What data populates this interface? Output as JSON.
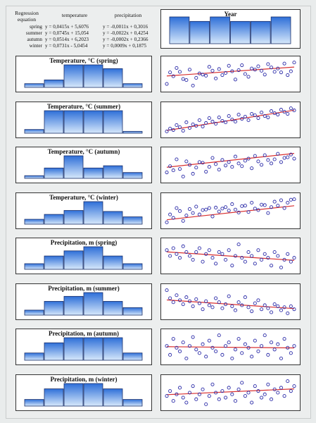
{
  "equations": {
    "header": {
      "label": "Regression equation",
      "temperature": "temperature",
      "precipitation": "precipitation"
    },
    "rows": [
      {
        "season": "spring",
        "temperature": "y = 0,0415x + 5,6076",
        "precipitation": "y = -0,0011x + 0,3016"
      },
      {
        "season": "summer",
        "temperature": "y = 0,0745x + 15,054",
        "precipitation": "y = -0,0022x + 0,4254"
      },
      {
        "season": "autumn",
        "temperature": "y = 0,0514x + 6,2023",
        "precipitation": "y = -0,0002x + 0,2366"
      },
      {
        "season": "winter",
        "temperature": "y = 0,0731x - 5,0454",
        "precipitation": "y = 0,0009x + 0,1875"
      }
    ]
  },
  "colors": {
    "bar_top": "#2e6fd8",
    "bar_bottom": "#d6e8fb",
    "bar_stroke": "#1a2f6a",
    "point": "#2a2aa8",
    "trend": "#d83030"
  },
  "chart_data": [
    {
      "type": "bar",
      "title": "Year",
      "values": [
        6,
        5,
        6,
        5,
        5,
        6
      ]
    },
    {
      "type": "bar",
      "title": "Temperature, °C (spring)",
      "values": [
        1,
        2,
        6,
        6,
        5,
        1
      ]
    },
    {
      "type": "bar",
      "title": "Temperature, °C (summer)",
      "values": [
        1,
        6,
        6,
        6,
        6,
        0.5
      ]
    },
    {
      "type": "bar",
      "title": "Temperature, °C (autumn)",
      "values": [
        0.6,
        2.3,
        5,
        2.3,
        2.8,
        1.3
      ]
    },
    {
      "type": "bar",
      "title": "Temperature, °C (winter)",
      "values": [
        1,
        2,
        2.8,
        4.6,
        2.6,
        1.5
      ]
    },
    {
      "type": "bar",
      "title": "Precipitation, m (spring)",
      "values": [
        1.1,
        2.6,
        3.6,
        4.4,
        2.6,
        1.1
      ]
    },
    {
      "type": "bar",
      "title": "Precipitation, m (summer)",
      "values": [
        0.8,
        2.2,
        3,
        3.6,
        2.2,
        1.2
      ]
    },
    {
      "type": "bar",
      "title": "Precipitation, m (autumn)",
      "values": [
        1,
        2.4,
        3.1,
        3.1,
        3.1,
        1
      ]
    },
    {
      "type": "bar",
      "title": "Precipitation, m (winter)",
      "values": [
        1,
        2.6,
        3.4,
        3.4,
        2.6,
        1
      ]
    },
    {
      "type": "scatter",
      "x": [
        1,
        2,
        3,
        4,
        5,
        6,
        7,
        8,
        9,
        10,
        11,
        12,
        13,
        14,
        15,
        16,
        17,
        18,
        19,
        20,
        21,
        22,
        23,
        24,
        25,
        26,
        27,
        28,
        29,
        30,
        31,
        32,
        33,
        34,
        35,
        36,
        37,
        38,
        39,
        40
      ],
      "y": [
        4.2,
        6.3,
        5.6,
        7.1,
        6.4,
        5.1,
        4.9,
        6.8,
        3.9,
        5.3,
        6.1,
        5.9,
        5.7,
        7.3,
        6.6,
        5.2,
        6.9,
        5.8,
        6.2,
        7.5,
        6.5,
        5.0,
        6.7,
        7.6,
        6.0,
        5.5,
        7.0,
        6.8,
        7.4,
        6.6,
        5.9,
        7.8,
        7.2,
        6.4,
        7.0,
        6.3,
        7.9,
        5.8,
        6.5,
        8.1
      ],
      "trend": [
        5.65,
        7.27
      ]
    },
    {
      "type": "scatter",
      "x": [
        1,
        2,
        3,
        4,
        5,
        6,
        7,
        8,
        9,
        10,
        11,
        12,
        13,
        14,
        15,
        16,
        17,
        18,
        19,
        20,
        21,
        22,
        23,
        24,
        25,
        26,
        27,
        28,
        29,
        30,
        31,
        32,
        33,
        34,
        35,
        36,
        37,
        38,
        39,
        40
      ],
      "y": [
        15.0,
        15.4,
        15.2,
        15.9,
        15.6,
        15.1,
        16.3,
        15.5,
        16.0,
        15.8,
        16.6,
        15.7,
        16.2,
        16.9,
        16.4,
        16.1,
        17.0,
        16.5,
        16.3,
        17.2,
        16.7,
        16.4,
        17.4,
        16.8,
        17.1,
        16.6,
        17.5,
        17.3,
        16.9,
        17.7,
        17.2,
        17.0,
        17.9,
        17.6,
        17.4,
        18.1,
        17.8,
        17.5,
        18.3,
        18.0
      ],
      "trend": [
        15.13,
        18.03
      ]
    },
    {
      "type": "scatter",
      "x": [
        1,
        2,
        3,
        4,
        5,
        6,
        7,
        8,
        9,
        10,
        11,
        12,
        13,
        14,
        15,
        16,
        17,
        18,
        19,
        20,
        21,
        22,
        23,
        24,
        25,
        26,
        27,
        28,
        29,
        30,
        31,
        32,
        33,
        34,
        35,
        36,
        37,
        38,
        39,
        40
      ],
      "y": [
        5.5,
        6.4,
        5.8,
        7.4,
        6.0,
        4.9,
        7.1,
        6.6,
        5.3,
        6.2,
        7.0,
        6.9,
        5.6,
        6.3,
        7.6,
        6.7,
        5.9,
        7.3,
        6.5,
        7.0,
        6.3,
        7.8,
        6.8,
        6.4,
        7.2,
        7.5,
        6.1,
        7.9,
        7.1,
        6.6,
        8.0,
        7.3,
        6.8,
        7.4,
        8.2,
        7.0,
        7.6,
        7.7,
        8.1,
        7.5
      ],
      "trend": [
        6.25,
        8.26
      ]
    },
    {
      "type": "scatter",
      "x": [
        1,
        2,
        3,
        4,
        5,
        6,
        7,
        8,
        9,
        10,
        11,
        12,
        13,
        14,
        15,
        16,
        17,
        18,
        19,
        20,
        21,
        22,
        23,
        24,
        25,
        26,
        27,
        28,
        29,
        30,
        31,
        32,
        33,
        34,
        35,
        36,
        37,
        38,
        39,
        40
      ],
      "y": [
        -5.5,
        -3.9,
        -4.6,
        -2.6,
        -3.2,
        -5.2,
        -4.1,
        -2.8,
        -3.6,
        -2.3,
        -3.9,
        -3.0,
        -2.9,
        -2.6,
        -4.3,
        -2.5,
        -3.3,
        -2.7,
        -2.4,
        -3.1,
        -1.8,
        -2.9,
        -3.5,
        -2.2,
        -2.1,
        -3.4,
        -1.5,
        -2.7,
        -3.0,
        -1.9,
        -2.0,
        -3.6,
        -2.4,
        -1.3,
        -2.1,
        -1.0,
        -2.6,
        -1.5,
        -0.9,
        -0.8
      ],
      "trend": [
        -4.97,
        -2.12
      ]
    },
    {
      "type": "scatter",
      "x": [
        1,
        2,
        3,
        4,
        5,
        6,
        7,
        8,
        9,
        10,
        11,
        12,
        13,
        14,
        15,
        16,
        17,
        18,
        19,
        20,
        21,
        22,
        23,
        24,
        25,
        26,
        27,
        28,
        29,
        30,
        31,
        32,
        33,
        34,
        35,
        36,
        37,
        38,
        39,
        40
      ],
      "y": [
        0.31,
        0.28,
        0.32,
        0.29,
        0.27,
        0.33,
        0.3,
        0.28,
        0.26,
        0.3,
        0.32,
        0.25,
        0.29,
        0.31,
        0.27,
        0.24,
        0.3,
        0.29,
        0.26,
        0.31,
        0.23,
        0.28,
        0.34,
        0.27,
        0.25,
        0.3,
        0.28,
        0.24,
        0.31,
        0.26,
        0.29,
        0.27,
        0.23,
        0.3,
        0.28,
        0.22,
        0.26,
        0.29,
        0.25,
        0.27
      ],
      "trend": [
        0.301,
        0.257
      ]
    },
    {
      "type": "scatter",
      "x": [
        1,
        2,
        3,
        4,
        5,
        6,
        7,
        8,
        9,
        10,
        11,
        12,
        13,
        14,
        15,
        16,
        17,
        18,
        19,
        20,
        21,
        22,
        23,
        24,
        25,
        26,
        27,
        28,
        29,
        30,
        31,
        32,
        33,
        34,
        35,
        36,
        37,
        38,
        39,
        40
      ],
      "y": [
        0.52,
        0.44,
        0.4,
        0.47,
        0.42,
        0.38,
        0.45,
        0.41,
        0.36,
        0.43,
        0.39,
        0.33,
        0.41,
        0.37,
        0.35,
        0.44,
        0.4,
        0.34,
        0.38,
        0.46,
        0.36,
        0.32,
        0.4,
        0.37,
        0.45,
        0.35,
        0.31,
        0.39,
        0.42,
        0.33,
        0.37,
        0.34,
        0.3,
        0.38,
        0.36,
        0.32,
        0.35,
        0.29,
        0.36,
        0.33
      ],
      "trend": [
        0.423,
        0.337
      ]
    },
    {
      "type": "scatter",
      "x": [
        1,
        2,
        3,
        4,
        5,
        6,
        7,
        8,
        9,
        10,
        11,
        12,
        13,
        14,
        15,
        16,
        17,
        18,
        19,
        20,
        21,
        22,
        23,
        24,
        25,
        26,
        27,
        28,
        29,
        30,
        31,
        32,
        33,
        34,
        35,
        36,
        37,
        38,
        39,
        40
      ],
      "y": [
        0.24,
        0.19,
        0.28,
        0.23,
        0.21,
        0.26,
        0.17,
        0.24,
        0.29,
        0.22,
        0.2,
        0.25,
        0.18,
        0.27,
        0.23,
        0.21,
        0.3,
        0.19,
        0.24,
        0.26,
        0.17,
        0.22,
        0.28,
        0.2,
        0.25,
        0.23,
        0.18,
        0.27,
        0.21,
        0.24,
        0.3,
        0.19,
        0.26,
        0.22,
        0.25,
        0.17,
        0.28,
        0.23,
        0.2,
        0.24
      ],
      "trend": [
        0.236,
        0.229
      ]
    },
    {
      "type": "scatter",
      "x": [
        1,
        2,
        3,
        4,
        5,
        6,
        7,
        8,
        9,
        10,
        11,
        12,
        13,
        14,
        15,
        16,
        17,
        18,
        19,
        20,
        21,
        22,
        23,
        24,
        25,
        26,
        27,
        28,
        29,
        30,
        31,
        32,
        33,
        34,
        35,
        36,
        37,
        38,
        39,
        40
      ],
      "y": [
        0.18,
        0.21,
        0.15,
        0.19,
        0.23,
        0.17,
        0.14,
        0.2,
        0.24,
        0.16,
        0.19,
        0.22,
        0.13,
        0.18,
        0.25,
        0.2,
        0.16,
        0.21,
        0.17,
        0.23,
        0.19,
        0.15,
        0.22,
        0.26,
        0.18,
        0.2,
        0.14,
        0.24,
        0.21,
        0.17,
        0.19,
        0.25,
        0.16,
        0.22,
        0.2,
        0.23,
        0.18,
        0.27,
        0.21,
        0.24
      ],
      "trend": [
        0.188,
        0.223
      ]
    }
  ]
}
